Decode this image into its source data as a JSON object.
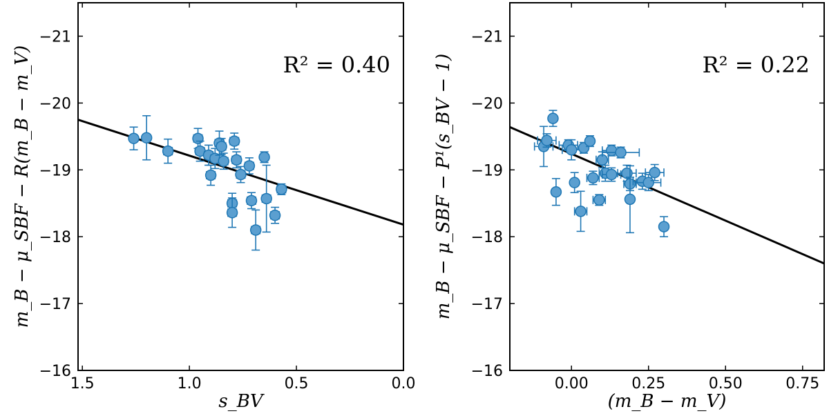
{
  "chart_data": [
    {
      "type": "scatter",
      "xlabel": "s_BV",
      "ylabel": "m_B − μ_SBF − R(m_B − m_V)",
      "xlim": [
        1.52,
        0.0
      ],
      "ylim": [
        -16,
        -21.5
      ],
      "xticks": [
        1.5,
        1.0,
        0.5,
        0.0
      ],
      "xtick_labels": [
        "1.5",
        "1.0",
        "0.5",
        "0.0"
      ],
      "yticks": [
        -16,
        -17,
        -18,
        -19,
        -20,
        -21
      ],
      "ytick_labels": [
        "−16",
        "−17",
        "−18",
        "−19",
        "−20",
        "−21"
      ],
      "annotation": "R² = 0.40",
      "fit_line": {
        "x": [
          1.52,
          0.0
        ],
        "y": [
          -19.75,
          -18.18
        ]
      },
      "points": [
        {
          "x": 1.26,
          "y": -19.47,
          "xerr": 0.0,
          "yerr": 0.17
        },
        {
          "x": 1.2,
          "y": -19.48,
          "xerr": 0.0,
          "yerr": 0.33
        },
        {
          "x": 1.1,
          "y": -19.28,
          "xerr": 0.02,
          "yerr": 0.18
        },
        {
          "x": 0.96,
          "y": -19.47,
          "xerr": 0.02,
          "yerr": 0.15
        },
        {
          "x": 0.95,
          "y": -19.28,
          "xerr": 0.02,
          "yerr": 0.15
        },
        {
          "x": 0.91,
          "y": -19.22,
          "xerr": 0.02,
          "yerr": 0.15
        },
        {
          "x": 0.9,
          "y": -18.92,
          "xerr": 0.02,
          "yerr": 0.15
        },
        {
          "x": 0.88,
          "y": -19.17,
          "xerr": 0.02,
          "yerr": 0.15
        },
        {
          "x": 0.86,
          "y": -19.4,
          "xerr": 0.02,
          "yerr": 0.18
        },
        {
          "x": 0.85,
          "y": -19.35,
          "xerr": 0.02,
          "yerr": 0.12
        },
        {
          "x": 0.84,
          "y": -19.13,
          "xerr": 0.02,
          "yerr": 0.12
        },
        {
          "x": 0.8,
          "y": -18.5,
          "xerr": 0.02,
          "yerr": 0.15
        },
        {
          "x": 0.8,
          "y": -18.36,
          "xerr": 0.02,
          "yerr": 0.22
        },
        {
          "x": 0.79,
          "y": -19.43,
          "xerr": 0.02,
          "yerr": 0.12
        },
        {
          "x": 0.78,
          "y": -19.15,
          "xerr": 0.02,
          "yerr": 0.12
        },
        {
          "x": 0.76,
          "y": -18.93,
          "xerr": 0.02,
          "yerr": 0.12
        },
        {
          "x": 0.72,
          "y": -19.06,
          "xerr": 0.02,
          "yerr": 0.12
        },
        {
          "x": 0.71,
          "y": -18.54,
          "xerr": 0.02,
          "yerr": 0.12
        },
        {
          "x": 0.69,
          "y": -18.1,
          "xerr": 0.02,
          "yerr": 0.3
        },
        {
          "x": 0.65,
          "y": -19.19,
          "xerr": 0.0,
          "yerr": 0.08
        },
        {
          "x": 0.64,
          "y": -18.57,
          "xerr": 0.02,
          "yerr": 0.5
        },
        {
          "x": 0.6,
          "y": -18.32,
          "xerr": 0.02,
          "yerr": 0.12
        },
        {
          "x": 0.57,
          "y": -18.71,
          "xerr": 0.02,
          "yerr": 0.08
        }
      ]
    },
    {
      "type": "scatter",
      "xlabel": "(m_B − m_V)",
      "ylabel": "m_B − μ_SBF − P¹(s_BV − 1)",
      "xlim": [
        -0.2,
        0.82
      ],
      "ylim": [
        -16,
        -21.5
      ],
      "xticks": [
        0.0,
        0.25,
        0.5,
        0.75
      ],
      "xtick_labels": [
        "0.00",
        "0.25",
        "0.50",
        "0.75"
      ],
      "yticks": [
        -16,
        -17,
        -18,
        -19,
        -20,
        -21
      ],
      "ytick_labels": [
        "−16",
        "−17",
        "−18",
        "−19",
        "−20",
        "−21"
      ],
      "annotation": "R² = 0.22",
      "fit_line": {
        "x": [
          -0.2,
          0.82
        ],
        "y": [
          -19.64,
          -17.6
        ]
      },
      "points": [
        {
          "x": -0.09,
          "y": -19.35,
          "xerr": 0.03,
          "yerr": 0.3
        },
        {
          "x": -0.08,
          "y": -19.44,
          "xerr": 0.03,
          "yerr": 0.1
        },
        {
          "x": -0.06,
          "y": -19.77,
          "xerr": 0.01,
          "yerr": 0.12
        },
        {
          "x": -0.05,
          "y": -18.67,
          "xerr": 0.01,
          "yerr": 0.2
        },
        {
          "x": -0.01,
          "y": -19.37,
          "xerr": 0.03,
          "yerr": 0.08
        },
        {
          "x": 0.0,
          "y": -19.3,
          "xerr": 0.03,
          "yerr": 0.15
        },
        {
          "x": 0.01,
          "y": -18.81,
          "xerr": 0.01,
          "yerr": 0.15
        },
        {
          "x": 0.03,
          "y": -18.38,
          "xerr": 0.02,
          "yerr": 0.3
        },
        {
          "x": 0.04,
          "y": -19.33,
          "xerr": 0.01,
          "yerr": 0.08
        },
        {
          "x": 0.06,
          "y": -19.43,
          "xerr": 0.01,
          "yerr": 0.08
        },
        {
          "x": 0.07,
          "y": -18.88,
          "xerr": 0.02,
          "yerr": 0.1
        },
        {
          "x": 0.09,
          "y": -18.55,
          "xerr": 0.02,
          "yerr": 0.08
        },
        {
          "x": 0.1,
          "y": -19.15,
          "xerr": 0.02,
          "yerr": 0.12
        },
        {
          "x": 0.11,
          "y": -18.95,
          "xerr": 0.02,
          "yerr": 0.12
        },
        {
          "x": 0.13,
          "y": -19.29,
          "xerr": 0.03,
          "yerr": 0.08
        },
        {
          "x": 0.13,
          "y": -18.93,
          "xerr": 0.03,
          "yerr": 0.1
        },
        {
          "x": 0.16,
          "y": -19.26,
          "xerr": 0.06,
          "yerr": 0.08
        },
        {
          "x": 0.18,
          "y": -18.95,
          "xerr": 0.03,
          "yerr": 0.12
        },
        {
          "x": 0.19,
          "y": -18.79,
          "xerr": 0.02,
          "yerr": 0.1
        },
        {
          "x": 0.19,
          "y": -18.56,
          "xerr": 0.01,
          "yerr": 0.5
        },
        {
          "x": 0.23,
          "y": -18.83,
          "xerr": 0.03,
          "yerr": 0.12
        },
        {
          "x": 0.25,
          "y": -18.81,
          "xerr": 0.04,
          "yerr": 0.12
        },
        {
          "x": 0.27,
          "y": -18.96,
          "xerr": 0.03,
          "yerr": 0.12
        },
        {
          "x": 0.3,
          "y": -18.15,
          "xerr": 0.01,
          "yerr": 0.15
        }
      ]
    }
  ]
}
